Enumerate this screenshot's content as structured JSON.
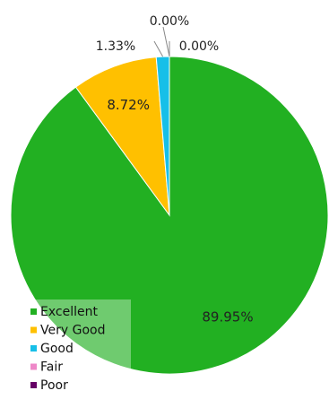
{
  "chart_data": {
    "type": "pie",
    "title": "",
    "slices": [
      {
        "label": "Excellent",
        "value": 89.95,
        "value_label": "89.95%",
        "color": "#22b022"
      },
      {
        "label": "Very Good",
        "value": 8.72,
        "value_label": "8.72%",
        "color": "#ffc000"
      },
      {
        "label": "Good",
        "value": 1.33,
        "value_label": "1.33%",
        "color": "#17bfe8"
      },
      {
        "label": "Fair",
        "value": 0.0,
        "value_label": "0.00%",
        "color": "#ee88c8"
      },
      {
        "label": "Poor",
        "value": 0.0,
        "value_label": "0.00%",
        "color": "#660066"
      }
    ],
    "legend_position": "bottom-left"
  }
}
